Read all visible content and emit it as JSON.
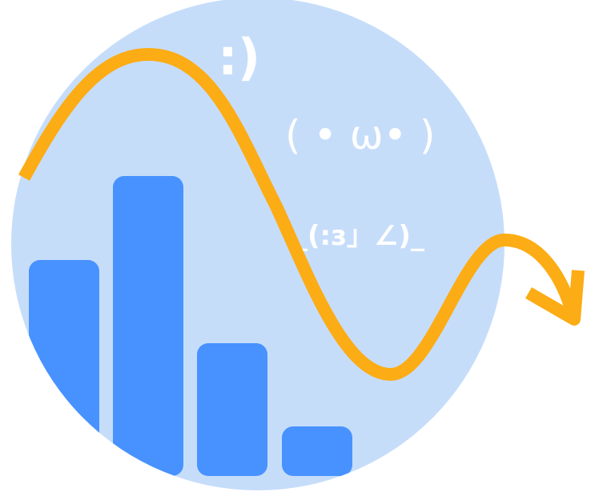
{
  "illustration": {
    "emoticons": {
      "smile": ":)",
      "cat_face": "( • ω• )",
      "lying_down": "_(:з」∠)_"
    },
    "bars": {
      "count": 4,
      "levels": [
        0.55,
        0.8,
        0.35,
        0.1
      ]
    },
    "colors": {
      "circle": "#c6ddfa",
      "bars": "#4892ff",
      "wave": "#fcac14",
      "text": "#ffffff"
    }
  }
}
